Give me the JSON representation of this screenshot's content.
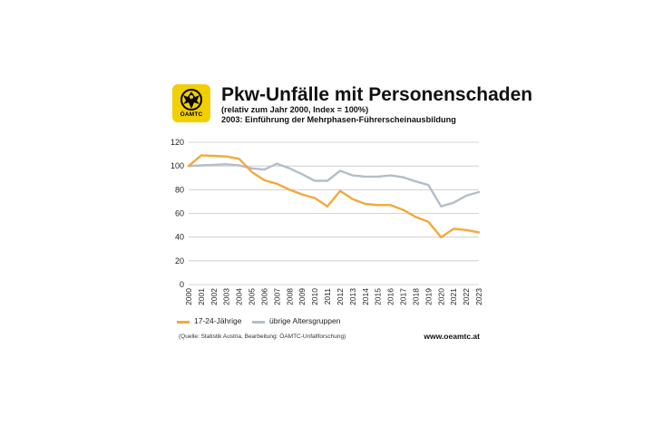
{
  "header": {
    "logo_text": "ÖAMTC",
    "title": "Pkw-Unfälle mit Personenschaden",
    "subtitle": "(relativ zum Jahr 2000, Index = 100%)",
    "note": "2003: Einführung der Mehrphasen-Führerscheinausbildung"
  },
  "footer": {
    "source": "(Quelle: Statistik Austria, Bearbeitung: ÖAMTC-Unfallforschung)",
    "url": "www.oeamtc.at"
  },
  "colors": {
    "series_young": "#f4a93a",
    "series_other": "#b3bec8",
    "grid": "#c8c8c8",
    "logo_bg": "#f2cf00"
  },
  "chart_data": {
    "type": "line",
    "title": "Pkw-Unfälle mit Personenschaden",
    "xlabel": "",
    "ylabel": "",
    "ylim": [
      0,
      120
    ],
    "yticks": [
      0,
      20,
      40,
      60,
      80,
      100,
      120
    ],
    "grid": true,
    "legend": "bottom",
    "x": [
      "2000",
      "2001",
      "2002",
      "2003",
      "2004",
      "2005",
      "2006",
      "2007",
      "2008",
      "2009",
      "2010",
      "2011",
      "2012",
      "2013",
      "2014",
      "2015",
      "2016",
      "2017",
      "2018",
      "2019",
      "2020",
      "2021",
      "2022",
      "2023"
    ],
    "series": [
      {
        "name": "17-24-Jährige",
        "color": "#f4a93a",
        "values": [
          100,
          109,
          108.5,
          108,
          106,
          95,
          88,
          85,
          80,
          76,
          73,
          66,
          79,
          72,
          68,
          67,
          67,
          63,
          57,
          53,
          40,
          47,
          46,
          44
        ]
      },
      {
        "name": "übrige Altersgruppen",
        "color": "#b3bec8",
        "values": [
          100,
          100.5,
          101,
          101.5,
          100.5,
          98,
          97,
          102,
          98,
          93,
          87.5,
          87.5,
          96,
          92,
          91,
          91,
          92,
          90.5,
          87,
          84,
          66,
          69,
          75,
          78
        ]
      }
    ]
  }
}
